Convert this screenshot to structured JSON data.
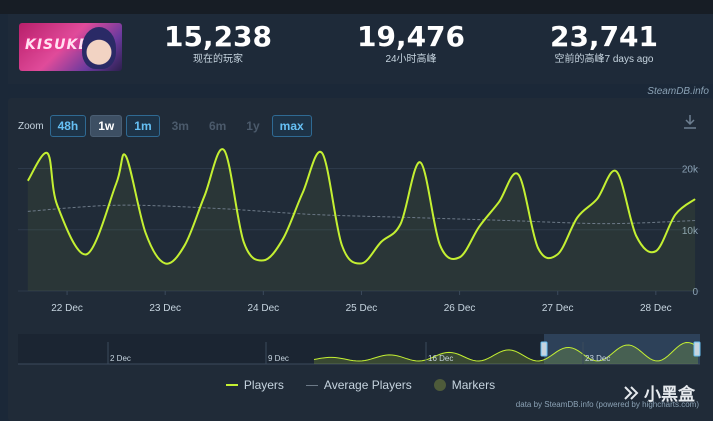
{
  "stats": [
    {
      "value": "15,238",
      "label": "现在的玩家"
    },
    {
      "value": "19,476",
      "label": "24小时高峰"
    },
    {
      "value": "23,741",
      "label": "空前的高峰7 days ago"
    }
  ],
  "capsule_text": "KISUKE",
  "credit": "SteamDB.info",
  "zoom": {
    "label": "Zoom",
    "buttons": [
      {
        "label": "48h",
        "state": "active"
      },
      {
        "label": "1w",
        "state": "selected"
      },
      {
        "label": "1m",
        "state": "active"
      },
      {
        "label": "3m",
        "state": "disabled"
      },
      {
        "label": "6m",
        "state": "disabled"
      },
      {
        "label": "1y",
        "state": "disabled"
      },
      {
        "label": "max",
        "state": "active"
      }
    ]
  },
  "legend": {
    "players": "Players",
    "average": "Average Players",
    "markers": "Markers"
  },
  "footer": "data by SteamDB.info (powered by highcharts.com)",
  "watermark": "小黑盒",
  "colors": {
    "players_line": "#c4f032",
    "average_line": "#6d7a88",
    "accent": "#66c0f4",
    "background": "#1b2838"
  },
  "chart_data": {
    "type": "line",
    "x_labels": [
      "22 Dec",
      "23 Dec",
      "24 Dec",
      "25 Dec",
      "26 Dec",
      "27 Dec",
      "28 Dec"
    ],
    "y_ticks": [
      "0",
      "10k",
      "20k"
    ],
    "ylim": [
      0,
      24000
    ],
    "series": [
      {
        "name": "Players",
        "x": [
          21.6,
          21.8,
          21.9,
          22.2,
          22.5,
          22.6,
          22.8,
          23.0,
          23.2,
          23.4,
          23.6,
          23.8,
          24.0,
          24.2,
          24.4,
          24.6,
          24.8,
          25.0,
          25.2,
          25.4,
          25.6,
          25.8,
          26.0,
          26.2,
          26.4,
          26.6,
          26.8,
          27.0,
          27.2,
          27.4,
          27.6,
          27.8,
          28.0,
          28.2,
          28.4
        ],
        "values": [
          18000,
          22500,
          14000,
          6000,
          17500,
          22000,
          9500,
          4500,
          7500,
          15500,
          23000,
          8000,
          5000,
          8500,
          16000,
          22500,
          7500,
          4500,
          8000,
          11000,
          21000,
          7500,
          5500,
          10500,
          14500,
          19000,
          7000,
          6000,
          12000,
          15000,
          19500,
          9000,
          6500,
          12500,
          15000
        ]
      },
      {
        "name": "Average Players",
        "x": [
          21.6,
          22.5,
          23.5,
          24.5,
          25.5,
          26.5,
          27.5,
          28.4
        ],
        "values": [
          13000,
          14000,
          13500,
          12500,
          12000,
          11500,
          11000,
          11500
        ]
      }
    ],
    "navigator_labels": [
      "2 Dec",
      "9 Dec",
      "16 Dec",
      "23 Dec"
    ]
  }
}
